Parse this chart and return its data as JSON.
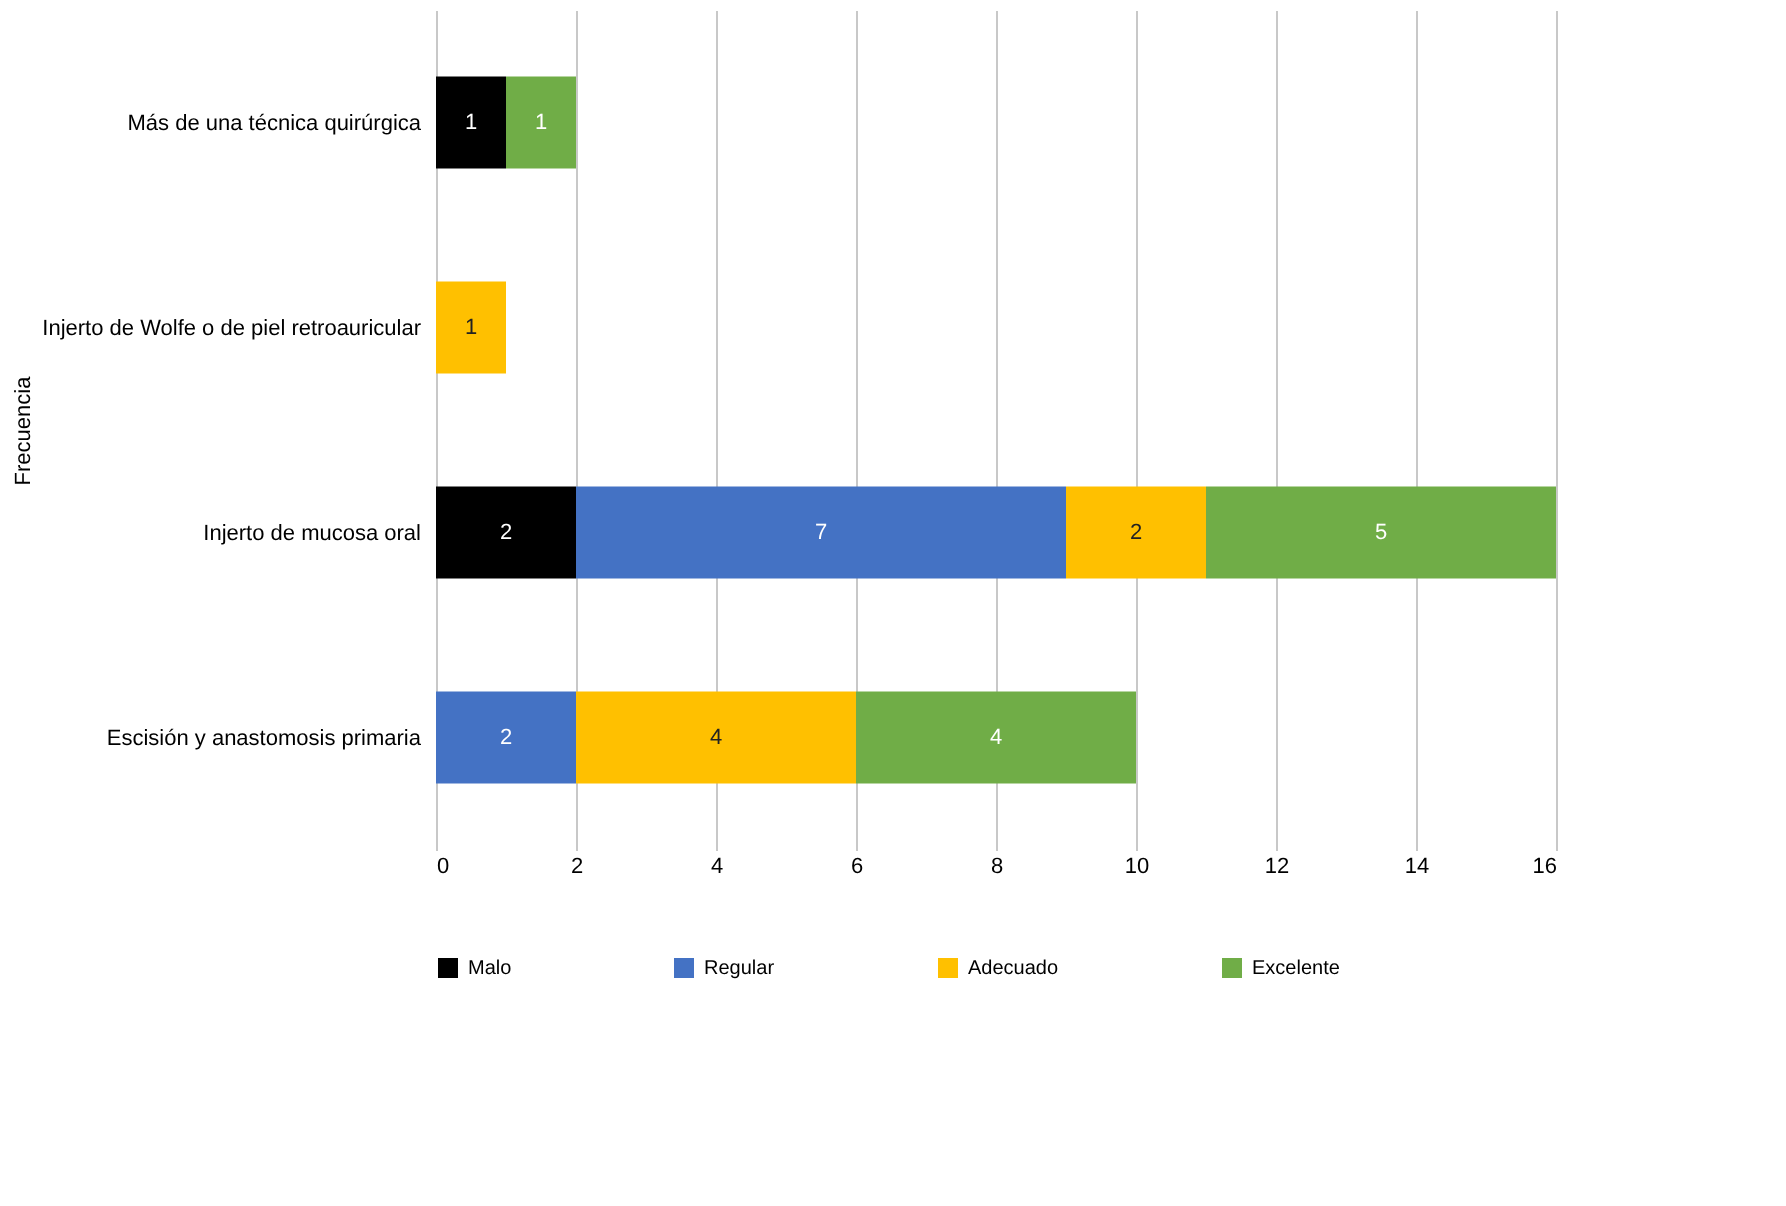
{
  "chart_data": {
    "type": "bar",
    "orientation": "horizontal",
    "stacked": true,
    "ylabel": "Frecuencia",
    "categories": [
      "Más de una técnica quirúrgica",
      "Injerto de Wolfe o de piel retroauricular",
      "Injerto de mucosa oral",
      "Escisión y anastomosis primaria"
    ],
    "series": [
      {
        "name": "Malo",
        "color": "#000000",
        "values": [
          1,
          null,
          2,
          null
        ]
      },
      {
        "name": "Regular",
        "color": "#4472c4",
        "values": [
          null,
          null,
          7,
          2
        ]
      },
      {
        "name": "Adecuado",
        "color": "#ffc000",
        "values": [
          null,
          1,
          2,
          4
        ]
      },
      {
        "name": "Excelente",
        "color": "#70ad47",
        "values": [
          1,
          null,
          5,
          4
        ]
      }
    ],
    "xlim": [
      0,
      16
    ],
    "xticks": [
      0,
      2,
      4,
      6,
      8,
      10,
      12,
      14,
      16
    ],
    "grid": "x",
    "legend": "bottom",
    "data_labels": true
  }
}
